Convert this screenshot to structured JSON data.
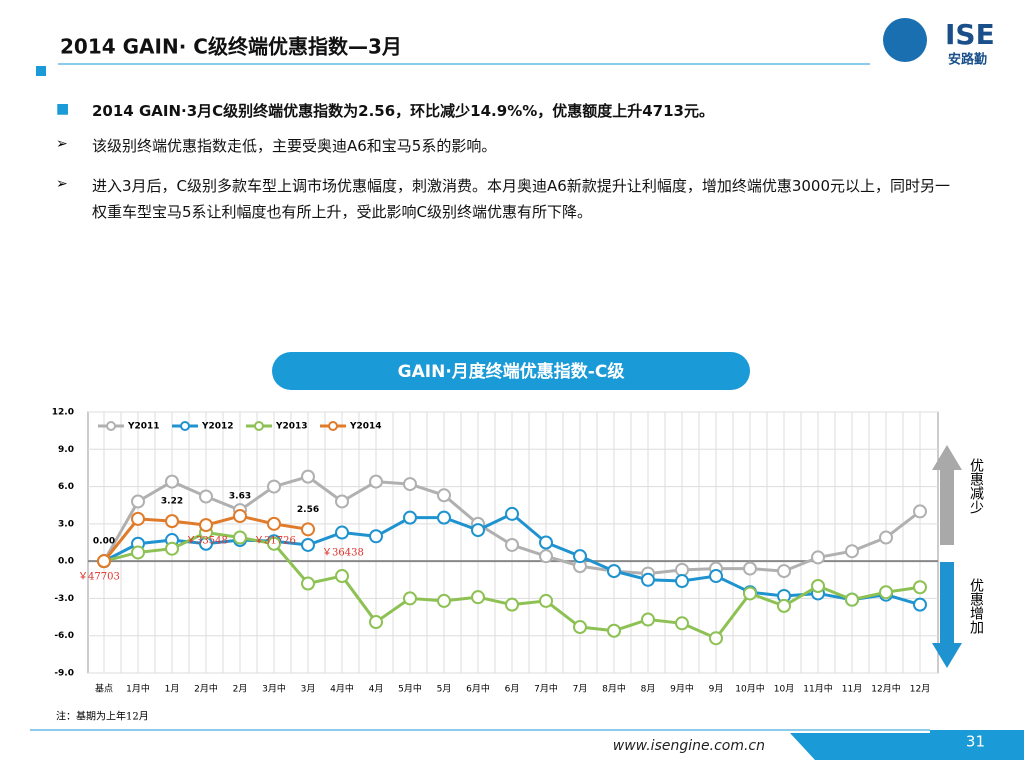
{
  "header": {
    "title": "2014 GAIN· C级终端优惠指数—3月",
    "logo_text": "ISE",
    "logo_sub": "安路勤"
  },
  "bullets": [
    "2014 GAIN·3月C级别终端优惠指数为2.56，环比减少14.9%%，优惠额度上升4713元。",
    "该级别终端优惠指数走低，主要受奥迪A6和宝马5系的影响。",
    "进入3月后，C级别多款车型上调市场优惠幅度，刺激消费。本月奥迪A6新款提升让利幅度，增加终端优惠3000元以上，同时另一权重车型宝马5系让利幅度也有所上升，受此影响C级别终端优惠有所下降。"
  ],
  "chart_data": {
    "type": "line",
    "title": "GAIN·月度终端优惠指数-C级",
    "categories": [
      "基点",
      "1月中",
      "1月",
      "2月中",
      "2月",
      "3月中",
      "3月",
      "4月中",
      "4月",
      "5月中",
      "5月",
      "6月中",
      "6月",
      "7月中",
      "7月",
      "8月中",
      "8月",
      "9月中",
      "9月",
      "10月中",
      "10月",
      "11月中",
      "11月",
      "12月中",
      "12月"
    ],
    "ylim": [
      -9,
      12
    ],
    "yticks": [
      {
        "value": -9,
        "label": "-9.0"
      },
      {
        "value": -6,
        "label": "-6.0"
      },
      {
        "value": -3,
        "label": "-3.0"
      },
      {
        "value": 0,
        "label": "0.0"
      },
      {
        "value": 3,
        "label": "3.0"
      },
      {
        "value": 6,
        "label": "6.0"
      },
      {
        "value": 9,
        "label": "9.0"
      },
      {
        "value": 12,
        "label": "12.0"
      }
    ],
    "grid": true,
    "series": [
      {
        "name": "Y2011",
        "color": "#b0b0b0",
        "values": [
          0,
          4.8,
          6.4,
          5.2,
          4.1,
          6.0,
          6.8,
          4.8,
          6.4,
          6.2,
          5.3,
          3.0,
          1.3,
          0.4,
          -0.4,
          -0.8,
          -1.0,
          -0.7,
          -0.6,
          -0.6,
          -0.8,
          0.3,
          0.8,
          1.9,
          4.0
        ]
      },
      {
        "name": "Y2012",
        "color": "#1f93cf",
        "values": [
          0,
          1.4,
          1.7,
          1.4,
          1.7,
          1.6,
          1.3,
          2.3,
          2.0,
          3.5,
          3.5,
          2.5,
          3.8,
          1.5,
          0.4,
          -0.8,
          -1.5,
          -1.6,
          -1.2,
          -2.5,
          -2.8,
          -2.6,
          -3.1,
          -2.7,
          -3.5
        ]
      },
      {
        "name": "Y2013",
        "color": "#8dc153",
        "values": [
          0,
          0.7,
          1.0,
          2.3,
          1.9,
          1.4,
          -1.8,
          -1.2,
          -4.9,
          -3.0,
          -3.2,
          -2.9,
          -3.5,
          -3.2,
          -5.3,
          -5.6,
          -4.7,
          -5.0,
          -6.2,
          -2.6,
          -3.6,
          -2.0,
          -3.1,
          -2.5,
          -2.1
        ]
      },
      {
        "name": "Y2014",
        "color": "#e07b2a",
        "values": [
          0,
          3.4,
          3.22,
          2.9,
          3.63,
          3.0,
          2.56,
          null,
          null,
          null,
          null,
          null,
          null,
          null,
          null,
          null,
          null,
          null,
          null,
          null,
          null,
          null,
          null,
          null,
          null
        ],
        "value_labels": [
          "0.00",
          null,
          "3.22",
          null,
          "3.63",
          null,
          "2.56",
          null,
          null,
          null,
          null,
          null,
          null,
          null,
          null,
          null,
          null,
          null,
          null,
          null,
          null,
          null,
          null,
          null,
          null
        ]
      }
    ],
    "price_labels": [
      "￥47703",
      "￥33548",
      "￥31726",
      "￥36438"
    ],
    "arrow_up_label": "优惠减少",
    "arrow_down_label": "优惠增加",
    "note": "注：基期为上年12月"
  },
  "footer": {
    "url": "www.isengine.com.cn",
    "page": "31"
  }
}
